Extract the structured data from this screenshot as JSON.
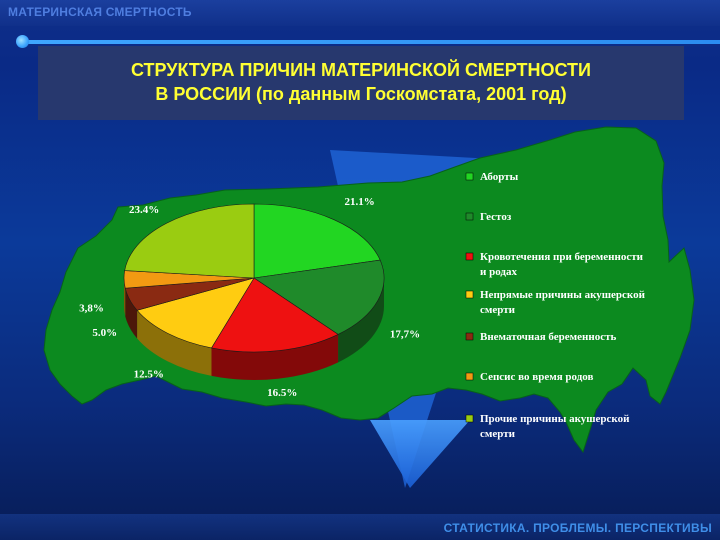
{
  "header": {
    "title": "МАТЕРИНСКАЯ СМЕРТНОСТЬ"
  },
  "slide_title": {
    "line1": "СТРУКТУРА ПРИЧИН МАТЕРИНСКОЙ СМЕРТНОСТИ",
    "line2": "В РОССИИ (по данным Госкомстата, 2001 год)"
  },
  "footer": {
    "text": "СТАТИСТИКА. ПРОБЛЕМЫ. ПЕРСПЕКТИВЫ"
  },
  "colors": {
    "map": "#0c8a1f",
    "title_text": "#ffff33",
    "title_box": "#27386e"
  },
  "chart_data": {
    "type": "pie",
    "title": "",
    "slices": [
      {
        "name": "Аборты",
        "value": 21.1,
        "label": "21.1%",
        "color": "#22d622"
      },
      {
        "name": "Гестоз",
        "value": 17.7,
        "label": "17,7%",
        "color": "#1f8a2a"
      },
      {
        "name": "Кровотечения при беременности и родах",
        "value": 16.5,
        "label": "16.5%",
        "color": "#ee1111"
      },
      {
        "name": "Непрямые причины акушерской смерти",
        "value": 12.5,
        "label": "12.5%",
        "color": "#ffcc11"
      },
      {
        "name": "Внематочная беременность",
        "value": 5.0,
        "label": "5.0%",
        "color": "#8a2a12"
      },
      {
        "name": "Сепсис во время родов",
        "value": 3.8,
        "label": "3,8%",
        "color": "#f29a12"
      },
      {
        "name": "Прочие причины акушерской смерти",
        "value": 23.4,
        "label": "23.4%",
        "color": "#9acc11"
      }
    ],
    "legend_position": "right"
  }
}
